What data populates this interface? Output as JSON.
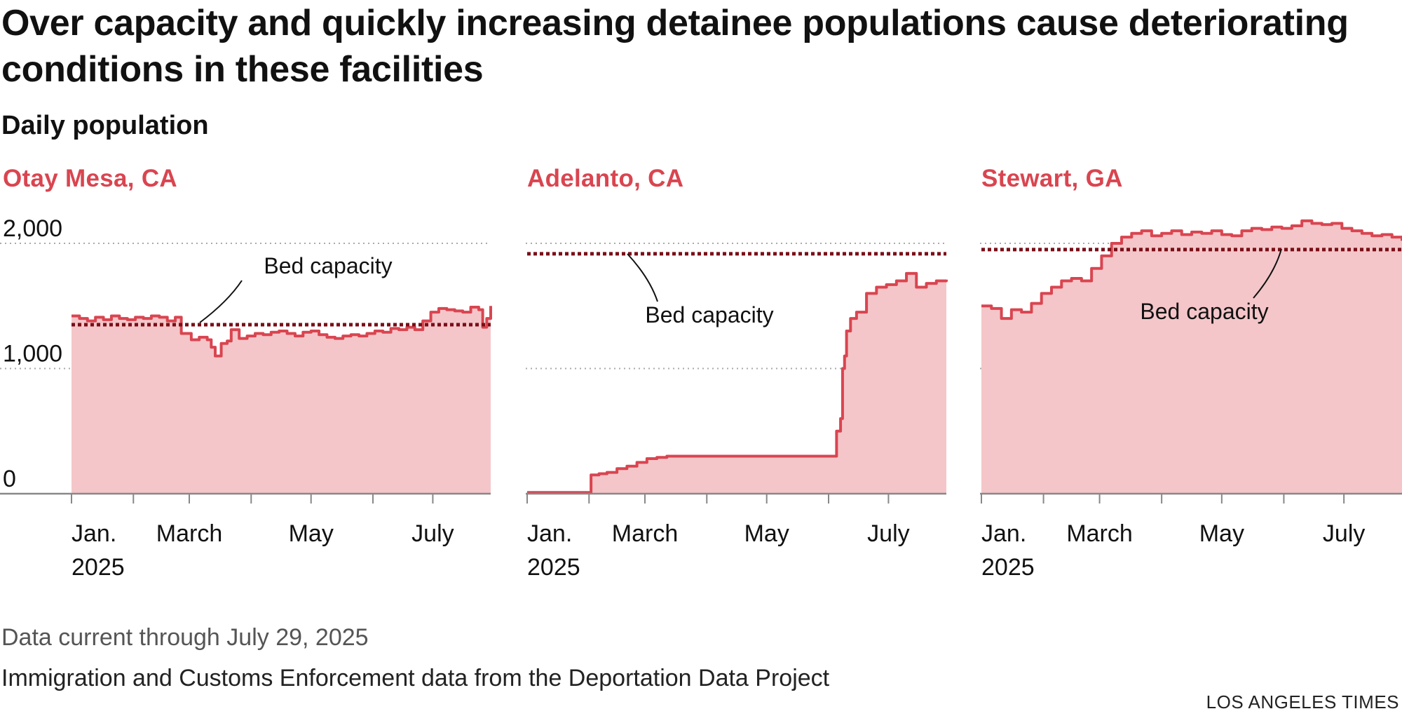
{
  "title": "Over capacity and quickly increasing detainee populations cause deteriorating conditions in these facilities",
  "subtitle": "Daily population",
  "note": "Data current through July 29, 2025",
  "source": "Immigration and Customs Enforcement data from the Deportation Data Project",
  "credit": "LOS ANGELES TIMES",
  "colors": {
    "accent": "#d94550",
    "line": "#d94550",
    "fill": "#f4c6c9",
    "capacity": "#7a0e17",
    "grid": "#aaaaaa",
    "axis": "#888888"
  },
  "chart_data": [
    {
      "type": "area",
      "title": "Otay Mesa, CA",
      "x_unit": "days since Jan. 1, 2025",
      "xlim": [
        0,
        210
      ],
      "ylim": [
        0,
        2000
      ],
      "yticks": [
        0,
        1000,
        2000
      ],
      "ytick_labels": [
        "0",
        "1,000",
        "2,000"
      ],
      "xticks": [
        0,
        31,
        59,
        90,
        120,
        151,
        181
      ],
      "xtick_labels": [
        {
          "x": 0,
          "lines": [
            "Jan.",
            "2025"
          ]
        },
        {
          "x": 59,
          "lines": [
            "March"
          ]
        },
        {
          "x": 120,
          "lines": [
            "May"
          ]
        },
        {
          "x": 181,
          "lines": [
            "July"
          ]
        }
      ],
      "capacity": 1350,
      "capacity_label": "Bed capacity",
      "label_position": "above",
      "series": {
        "name": "Daily population",
        "x": [
          0,
          4,
          8,
          12,
          16,
          20,
          24,
          28,
          32,
          36,
          40,
          44,
          48,
          52,
          55,
          60,
          64,
          68,
          70,
          72,
          75,
          78,
          80,
          84,
          88,
          92,
          96,
          100,
          104,
          108,
          112,
          116,
          120,
          124,
          128,
          132,
          136,
          140,
          144,
          148,
          152,
          156,
          160,
          164,
          168,
          172,
          176,
          180,
          184,
          188,
          192,
          196,
          200,
          204,
          206,
          208,
          210
        ],
        "values": [
          1420,
          1400,
          1380,
          1410,
          1390,
          1420,
          1400,
          1390,
          1410,
          1400,
          1420,
          1410,
          1380,
          1410,
          1280,
          1230,
          1250,
          1230,
          1170,
          1100,
          1200,
          1220,
          1310,
          1240,
          1260,
          1280,
          1270,
          1290,
          1300,
          1280,
          1260,
          1290,
          1300,
          1270,
          1250,
          1240,
          1260,
          1270,
          1260,
          1280,
          1300,
          1290,
          1320,
          1310,
          1330,
          1310,
          1380,
          1450,
          1480,
          1470,
          1460,
          1450,
          1490,
          1470,
          1330,
          1400,
          1500
        ]
      }
    },
    {
      "type": "area",
      "title": "Adelanto, CA",
      "x_unit": "days since Jan. 1, 2025",
      "xlim": [
        0,
        210
      ],
      "ylim": [
        0,
        2000
      ],
      "yticks": [
        0,
        1000,
        2000
      ],
      "ytick_labels": [
        "",
        "",
        ""
      ],
      "xticks": [
        0,
        31,
        59,
        90,
        120,
        151,
        181
      ],
      "xtick_labels": [
        {
          "x": 0,
          "lines": [
            "Jan.",
            "2025"
          ]
        },
        {
          "x": 59,
          "lines": [
            "March"
          ]
        },
        {
          "x": 120,
          "lines": [
            "May"
          ]
        },
        {
          "x": 181,
          "lines": [
            "July"
          ]
        }
      ],
      "capacity": 1917,
      "capacity_label": "Bed capacity",
      "label_position": "below",
      "series": {
        "name": "Daily population",
        "x": [
          0,
          25,
          31,
          32,
          34,
          36,
          40,
          45,
          50,
          55,
          60,
          65,
          70,
          100,
          130,
          150,
          155,
          157,
          158,
          159,
          160,
          162,
          165,
          170,
          175,
          180,
          185,
          190,
          195,
          200,
          205,
          210
        ],
        "values": [
          10,
          10,
          10,
          150,
          150,
          160,
          170,
          200,
          220,
          250,
          280,
          290,
          300,
          300,
          300,
          300,
          500,
          600,
          1000,
          1100,
          1300,
          1400,
          1450,
          1600,
          1650,
          1670,
          1700,
          1760,
          1650,
          1680,
          1700,
          1710
        ]
      }
    },
    {
      "type": "area",
      "title": "Stewart, GA",
      "x_unit": "days since Jan. 1, 2025",
      "xlim": [
        0,
        210
      ],
      "ylim": [
        0,
        2000
      ],
      "yticks": [
        0,
        1000,
        2000
      ],
      "ytick_labels": [
        "",
        "",
        ""
      ],
      "xticks": [
        0,
        31,
        59,
        90,
        120,
        151,
        181
      ],
      "xtick_labels": [
        {
          "x": 0,
          "lines": [
            "Jan.",
            "2025"
          ]
        },
        {
          "x": 59,
          "lines": [
            "March"
          ]
        },
        {
          "x": 120,
          "lines": [
            "May"
          ]
        },
        {
          "x": 181,
          "lines": [
            "July"
          ]
        }
      ],
      "capacity": 1950,
      "capacity_label": "Bed capacity",
      "label_position": "below",
      "series": {
        "name": "Daily population",
        "x": [
          0,
          5,
          10,
          15,
          20,
          25,
          30,
          35,
          40,
          45,
          50,
          55,
          60,
          65,
          70,
          75,
          80,
          85,
          90,
          95,
          100,
          105,
          110,
          115,
          120,
          125,
          130,
          135,
          140,
          145,
          150,
          155,
          160,
          165,
          170,
          175,
          180,
          185,
          190,
          195,
          200,
          205,
          210
        ],
        "values": [
          1500,
          1480,
          1400,
          1470,
          1450,
          1520,
          1600,
          1650,
          1700,
          1720,
          1700,
          1800,
          1900,
          2000,
          2050,
          2080,
          2100,
          2060,
          2080,
          2100,
          2070,
          2090,
          2080,
          2100,
          2070,
          2060,
          2100,
          2120,
          2110,
          2130,
          2120,
          2140,
          2180,
          2160,
          2150,
          2160,
          2120,
          2100,
          2080,
          2060,
          2070,
          2050,
          2020
        ]
      }
    }
  ]
}
